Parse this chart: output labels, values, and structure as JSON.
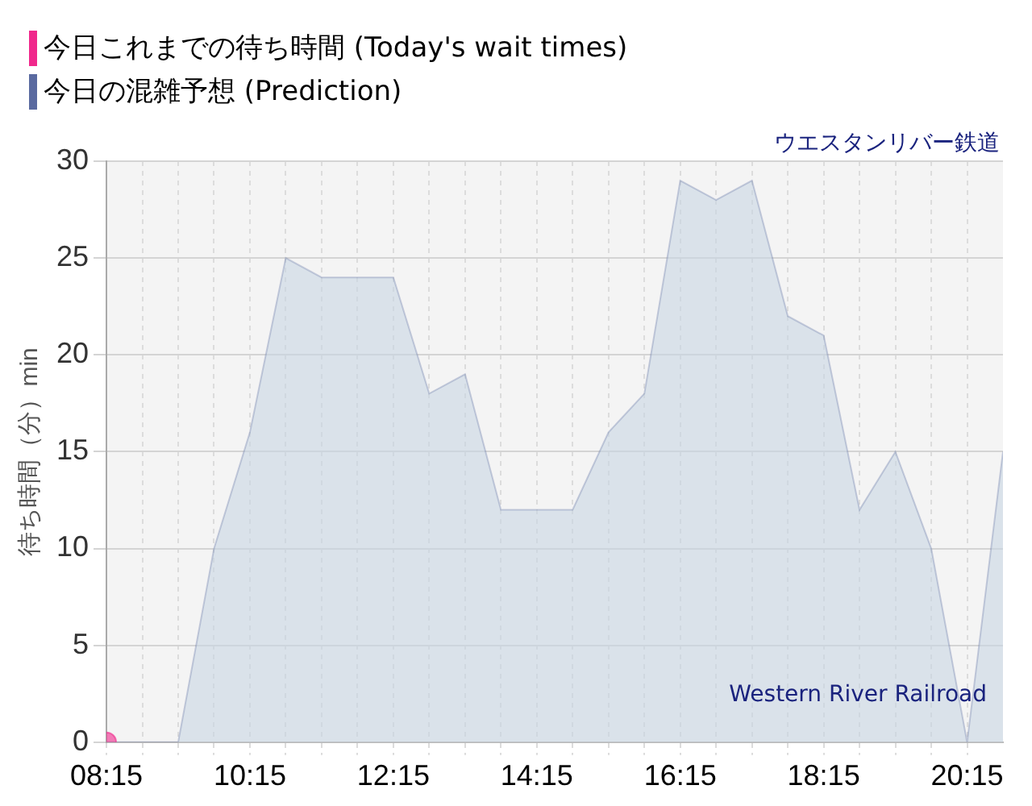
{
  "chart_data": {
    "type": "area",
    "ylabel": "待ち時間（分）min",
    "legend": "top left",
    "grid": true,
    "annotations": [
      "ウエスタンリバー鉄道",
      "Western River Railroad"
    ],
    "xlim": [
      8.25,
      20.75
    ],
    "ylim": [
      0,
      30
    ],
    "yticks": [
      0,
      5,
      10,
      15,
      20,
      25,
      30
    ],
    "xticks": [
      {
        "value": 8.25,
        "label": "08:15"
      },
      {
        "value": 8.75,
        "label": null
      },
      {
        "value": 9.25,
        "label": null
      },
      {
        "value": 9.75,
        "label": null
      },
      {
        "value": 10.25,
        "label": "10:15"
      },
      {
        "value": 10.75,
        "label": null
      },
      {
        "value": 11.25,
        "label": null
      },
      {
        "value": 11.75,
        "label": null
      },
      {
        "value": 12.25,
        "label": "12:15"
      },
      {
        "value": 12.75,
        "label": null
      },
      {
        "value": 13.25,
        "label": null
      },
      {
        "value": 13.75,
        "label": null
      },
      {
        "value": 14.25,
        "label": "14:15"
      },
      {
        "value": 14.75,
        "label": null
      },
      {
        "value": 15.25,
        "label": null
      },
      {
        "value": 15.75,
        "label": null
      },
      {
        "value": 16.25,
        "label": "16:15"
      },
      {
        "value": 16.75,
        "label": null
      },
      {
        "value": 17.25,
        "label": null
      },
      {
        "value": 17.75,
        "label": null
      },
      {
        "value": 18.25,
        "label": "18:15"
      },
      {
        "value": 18.75,
        "label": null
      },
      {
        "value": 19.25,
        "label": null
      },
      {
        "value": 19.75,
        "label": null
      },
      {
        "value": 20.25,
        "label": "20:15"
      }
    ],
    "series": [
      {
        "name": "今日これまでの待ち時間 (Today's wait times)",
        "type": "scatter",
        "color": "#f0288c",
        "x": [
          8.25
        ],
        "values": [
          0
        ]
      },
      {
        "name": "今日の混雑予想 (Prediction)",
        "color": "#5a6aa0",
        "x": [
          8.25,
          8.75,
          9.25,
          9.75,
          10.25,
          10.75,
          11.25,
          11.75,
          12.25,
          12.75,
          13.25,
          13.75,
          14.25,
          14.75,
          15.25,
          15.75,
          16.25,
          16.75,
          17.25,
          17.75,
          18.25,
          18.75,
          19.25,
          19.75,
          20.25,
          20.75
        ],
        "values": [
          0,
          0,
          0,
          10,
          16,
          25,
          24,
          24,
          24,
          18,
          19,
          12,
          12,
          12,
          16,
          18,
          29,
          28,
          29,
          22,
          21,
          12,
          15,
          10,
          0,
          15
        ]
      }
    ]
  }
}
